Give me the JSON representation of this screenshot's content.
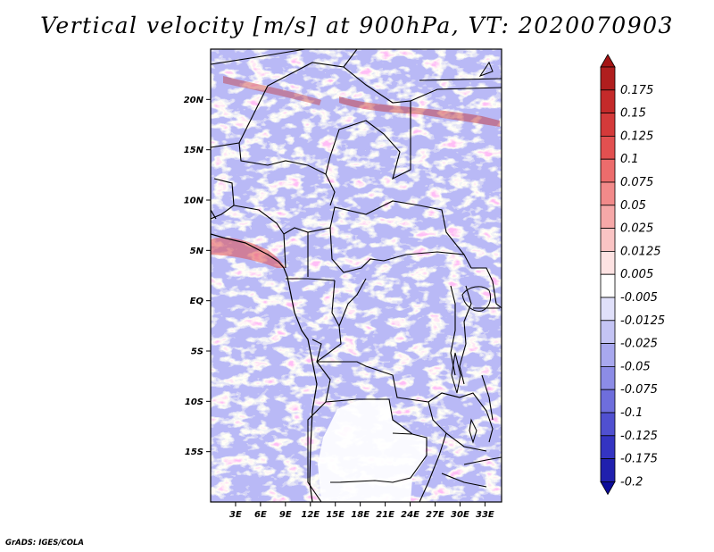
{
  "title": "Vertical velocity [m/s] at 900hPa, VT: 2020070903",
  "map": {
    "lon_range": [
      0,
      35
    ],
    "lat_range": [
      -20,
      25
    ],
    "lat_ticks": [
      {
        "value": 20,
        "label": "20N"
      },
      {
        "value": 15,
        "label": "15N"
      },
      {
        "value": 10,
        "label": "10N"
      },
      {
        "value": 5,
        "label": "5N"
      },
      {
        "value": 0,
        "label": "EQ"
      },
      {
        "value": -5,
        "label": "5S"
      },
      {
        "value": -10,
        "label": "10S"
      },
      {
        "value": -15,
        "label": "15S"
      }
    ],
    "lon_ticks": [
      {
        "value": 3,
        "label": "3E"
      },
      {
        "value": 6,
        "label": "6E"
      },
      {
        "value": 9,
        "label": "9E"
      },
      {
        "value": 12,
        "label": "12E"
      },
      {
        "value": 15,
        "label": "15E"
      },
      {
        "value": 18,
        "label": "18E"
      },
      {
        "value": 21,
        "label": "21E"
      },
      {
        "value": 24,
        "label": "24E"
      },
      {
        "value": 27,
        "label": "27E"
      },
      {
        "value": 30,
        "label": "30E"
      },
      {
        "value": 33,
        "label": "33E"
      }
    ]
  },
  "colorbar": {
    "levels": [
      {
        "label": "0.175",
        "color": "#b01e1e"
      },
      {
        "label": "0.15",
        "color": "#c42a2a"
      },
      {
        "label": "0.125",
        "color": "#d43a3a"
      },
      {
        "label": "0.1",
        "color": "#e25050"
      },
      {
        "label": "0.075",
        "color": "#ec6c6c"
      },
      {
        "label": "0.05",
        "color": "#f28a8a"
      },
      {
        "label": "0.025",
        "color": "#f6a8a8"
      },
      {
        "label": "0.0125",
        "color": "#fac4c4"
      },
      {
        "label": "0.005",
        "color": "#fde2e2"
      },
      {
        "label": "-0.005",
        "color": "#ffffff"
      },
      {
        "label": "-0.0125",
        "color": "#e0e0fa"
      },
      {
        "label": "-0.025",
        "color": "#c4c4f4"
      },
      {
        "label": "-0.05",
        "color": "#a8a8ee"
      },
      {
        "label": "-0.075",
        "color": "#8c8ce6"
      },
      {
        "label": "-0.1",
        "color": "#6e6edc"
      },
      {
        "label": "-0.125",
        "color": "#5050d0"
      },
      {
        "label": "-0.175",
        "color": "#3434c2"
      },
      {
        "label": "-0.2",
        "color": "#2020ae"
      }
    ],
    "top_arrow_color": "#a41414",
    "bottom_arrow_color": "#0c0c9a"
  },
  "credit": "GrADS: IGES/COLA"
}
